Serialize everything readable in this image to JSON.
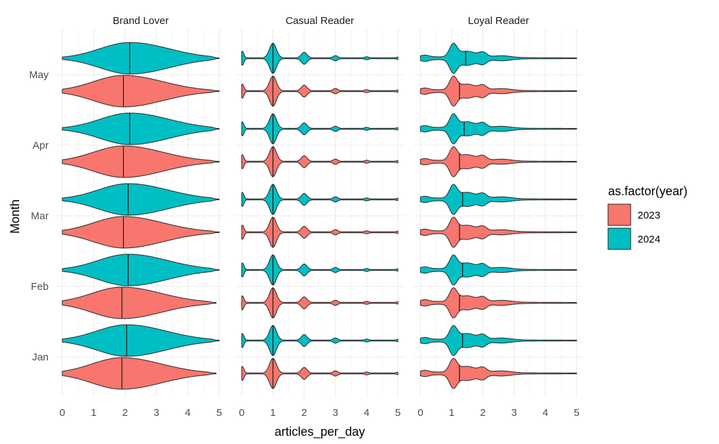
{
  "chart_data": {
    "type": "violin",
    "xlabel": "articles_per_day",
    "ylabel": "Month",
    "xlim": [
      0,
      5
    ],
    "x_ticks": [
      0,
      1,
      2,
      3,
      4,
      5
    ],
    "months": [
      "Jan",
      "Feb",
      "Mar",
      "Apr",
      "May"
    ],
    "grid": true,
    "legend": {
      "title": "as.factor(year)",
      "position": "right",
      "entries": [
        {
          "label": "2023",
          "color": "#F8766D"
        },
        {
          "label": "2024",
          "color": "#00BFC4"
        }
      ]
    },
    "panels": [
      {
        "title": "Brand Lover",
        "shape": "broad",
        "series": [
          {
            "year": "2023",
            "medians": {
              "Jan": 1.9,
              "Feb": 1.9,
              "Mar": 1.95,
              "Apr": 1.95,
              "May": 1.95
            },
            "max": {
              "Jan": 4.9,
              "Feb": 4.9,
              "Mar": 5.0,
              "Apr": 5.0,
              "May": 5.0
            }
          },
          {
            "year": "2024",
            "medians": {
              "Jan": 2.05,
              "Feb": 2.1,
              "Mar": 2.1,
              "Apr": 2.15,
              "May": 2.15
            },
            "max": {
              "Jan": 5.0,
              "Feb": 5.0,
              "Mar": 5.0,
              "Apr": 5.0,
              "May": 5.0
            }
          }
        ]
      },
      {
        "title": "Casual Reader",
        "shape": "multimodal",
        "series": [
          {
            "year": "2023",
            "medians": {
              "Jan": 1.0,
              "Feb": 1.0,
              "Mar": 1.0,
              "Apr": 1.0,
              "May": 1.0
            },
            "max": {
              "Jan": 5.0,
              "Feb": 5.0,
              "Mar": 5.0,
              "Apr": 5.0,
              "May": 5.0
            }
          },
          {
            "year": "2024",
            "medians": {
              "Jan": 1.0,
              "Feb": 1.0,
              "Mar": 1.0,
              "Apr": 1.0,
              "May": 1.0
            },
            "max": {
              "Jan": 5.0,
              "Feb": 5.0,
              "Mar": 5.0,
              "Apr": 5.0,
              "May": 5.0
            }
          }
        ]
      },
      {
        "title": "Loyal Reader",
        "shape": "peaked",
        "series": [
          {
            "year": "2023",
            "medians": {
              "Jan": 1.25,
              "Feb": 1.25,
              "Mar": 1.25,
              "Apr": 1.25,
              "May": 1.25
            },
            "max": {
              "Jan": 5.0,
              "Feb": 5.0,
              "Mar": 5.0,
              "Apr": 5.0,
              "May": 5.0
            }
          },
          {
            "year": "2024",
            "medians": {
              "Jan": 1.35,
              "Feb": 1.35,
              "Mar": 1.35,
              "Apr": 1.4,
              "May": 1.45
            },
            "max": {
              "Jan": 5.0,
              "Feb": 5.0,
              "Mar": 5.0,
              "Apr": 5.0,
              "May": 5.0
            }
          }
        ]
      }
    ]
  }
}
